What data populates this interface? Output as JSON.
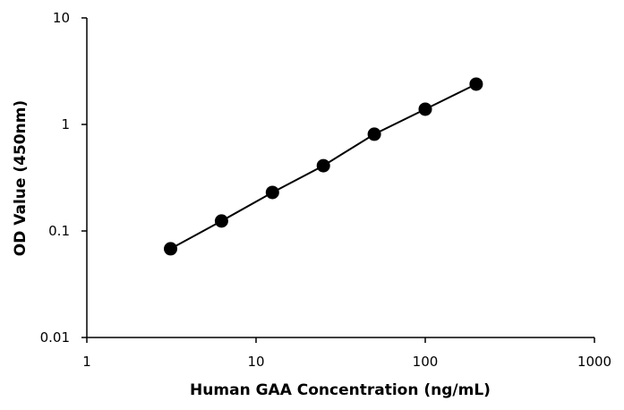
{
  "chart_data": {
    "type": "line",
    "title": "",
    "xlabel": "Human GAA Concentration (ng/mL)",
    "ylabel": "OD Value (450nm)",
    "xscale": "log",
    "yscale": "log",
    "xlim": [
      1,
      1000
    ],
    "ylim": [
      0.01,
      10
    ],
    "xticks": [
      "1",
      "10",
      "100",
      "1000"
    ],
    "yticks": [
      "0.01",
      "0.1",
      "1",
      "10"
    ],
    "grid": false,
    "legend": "none",
    "marker": "filled-circle",
    "color": "#000000",
    "series": [
      {
        "x": [
          3.125,
          6.25,
          12.5,
          25,
          50,
          100,
          200
        ],
        "y": [
          0.068,
          0.124,
          0.23,
          0.41,
          0.81,
          1.39,
          2.39
        ]
      }
    ]
  }
}
